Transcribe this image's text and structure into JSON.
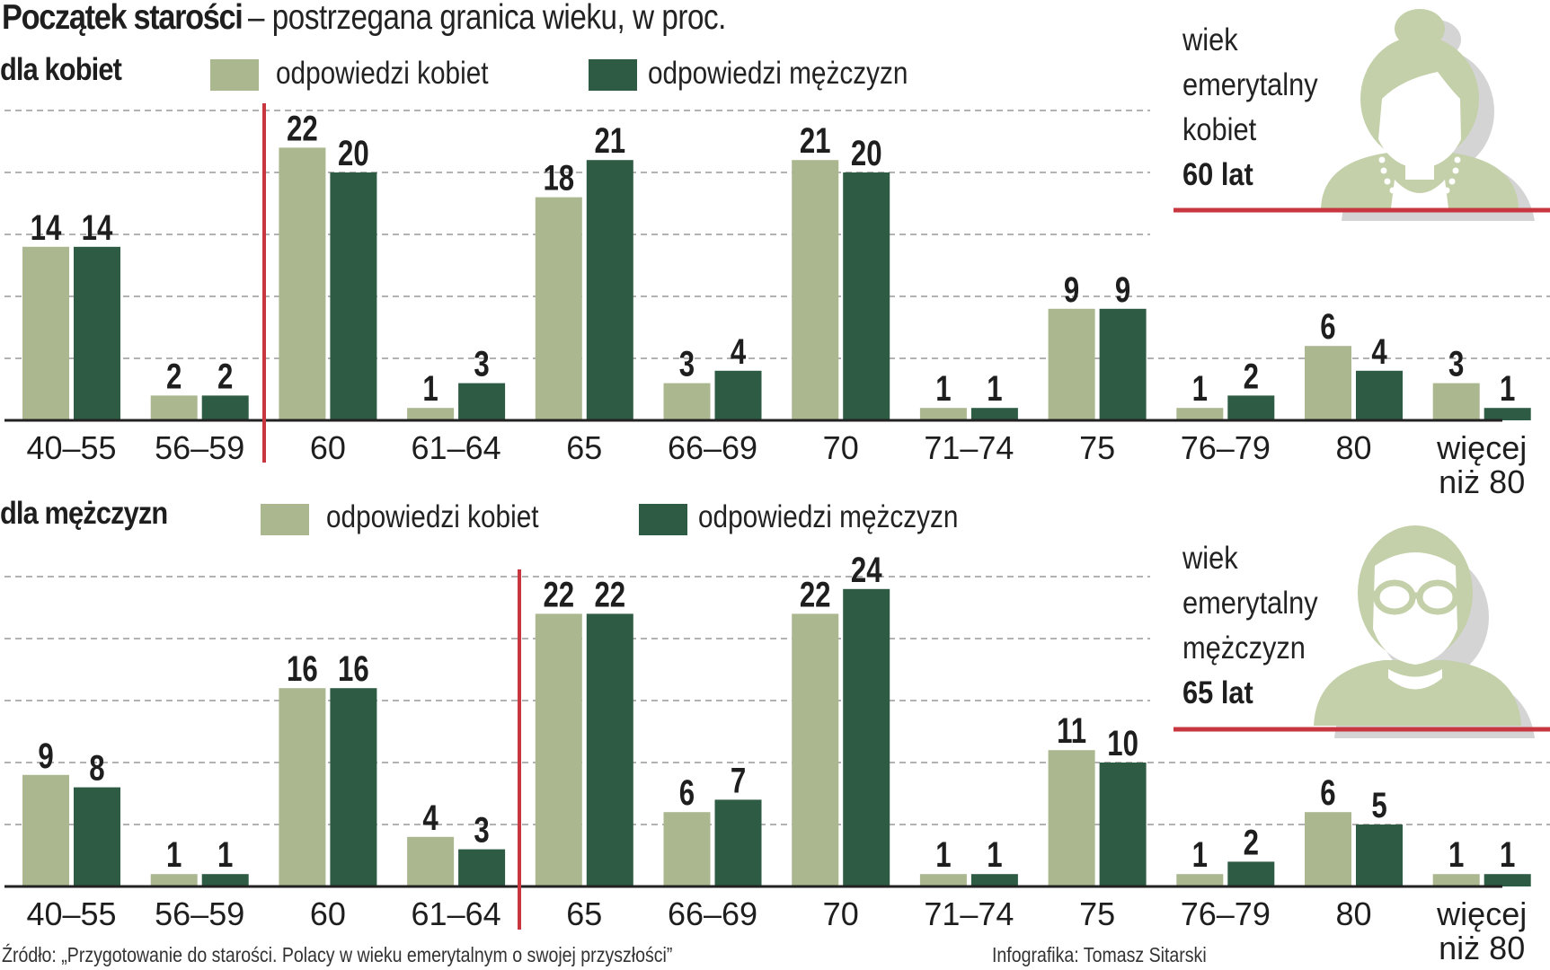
{
  "title": {
    "bold": "Początek starości",
    "rest": " – postrzegana granica wieku, w proc."
  },
  "colors": {
    "women_answers": "#abb78f",
    "men_answers": "#2e5b44",
    "accent_red": "#c8373f",
    "icon_green": "#c3d0a9",
    "icon_shadow": "#d4d4d4",
    "grid": "#999999",
    "axis": "#222222"
  },
  "legend": {
    "women": "odpowiedzi kobiet",
    "men": "odpowiedzi mężczyzn"
  },
  "info": [
    {
      "line1": "wiek",
      "line2": "emerytalny",
      "line3": "kobiet",
      "value": "60 lat",
      "icon": "woman-icon"
    },
    {
      "line1": "wiek",
      "line2": "emerytalny",
      "line3": "mężczyzn",
      "value": "65 lat",
      "icon": "man-icon"
    }
  ],
  "footer": {
    "source": "Źródło: „Przygotowanie do starości. Polacy w wieku emerytalnym o swojej przyszłości”",
    "credit": "Infografika: Tomasz Sitarski"
  },
  "chart_data": [
    {
      "type": "bar",
      "title": "dla kobiet",
      "categories": [
        "40–55",
        "56–59",
        "60",
        "61–64",
        "65",
        "66–69",
        "70",
        "71–74",
        "75",
        "76–79",
        "80",
        "więcej niż 80"
      ],
      "series": [
        {
          "name": "odpowiedzi kobiet",
          "values": [
            14,
            2,
            22,
            1,
            18,
            3,
            21,
            1,
            9,
            1,
            6,
            3
          ]
        },
        {
          "name": "odpowiedzi mężczyzn",
          "values": [
            14,
            2,
            20,
            3,
            21,
            4,
            20,
            1,
            9,
            2,
            4,
            1
          ]
        }
      ],
      "ylim": [
        0,
        25
      ],
      "gridlines": [
        5,
        10,
        15,
        20,
        25
      ],
      "grid": true,
      "marker_before_category": "60",
      "marker_label": "wiek emerytalny kobiet 60 lat",
      "xlabel": "",
      "ylabel": "proc.",
      "legend": "top"
    },
    {
      "type": "bar",
      "title": "dla mężczyzn",
      "categories": [
        "40–55",
        "56–59",
        "60",
        "61–64",
        "65",
        "66–69",
        "70",
        "71–74",
        "75",
        "76–79",
        "80",
        "więcej niż 80"
      ],
      "series": [
        {
          "name": "odpowiedzi kobiet",
          "values": [
            9,
            1,
            16,
            4,
            22,
            6,
            22,
            1,
            11,
            1,
            6,
            1
          ]
        },
        {
          "name": "odpowiedzi mężczyzn",
          "values": [
            8,
            1,
            16,
            3,
            22,
            7,
            24,
            1,
            10,
            2,
            5,
            1
          ]
        }
      ],
      "ylim": [
        0,
        25
      ],
      "gridlines": [
        5,
        10,
        15,
        20,
        25
      ],
      "grid": true,
      "marker_before_category": "65",
      "marker_label": "wiek emerytalny mężczyzn 65 lat",
      "xlabel": "",
      "ylabel": "proc.",
      "legend": "top"
    }
  ]
}
